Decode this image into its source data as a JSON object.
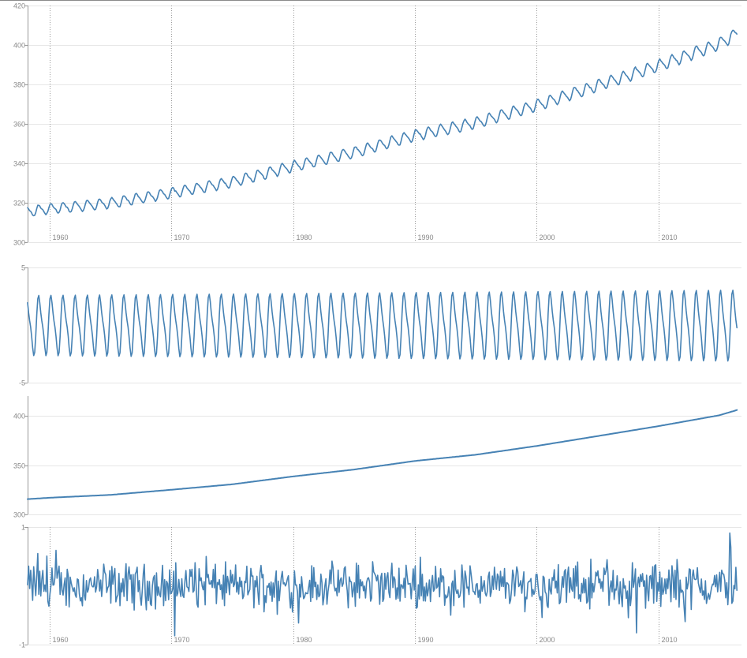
{
  "chart_data": [
    {
      "type": "line",
      "panel": "observed",
      "title": "",
      "xlabel": "",
      "ylabel": "",
      "x_range": [
        1958.2,
        2016.5
      ],
      "ylim": [
        300,
        420
      ],
      "y_ticks": [
        300,
        320,
        340,
        360,
        380,
        400,
        420
      ],
      "x_tick_labels": [
        "1960",
        "1970",
        "1980",
        "1990",
        "2000",
        "2010"
      ],
      "grid": true,
      "color": "#4682b4",
      "series": [
        {
          "values_description_free": true,
          "x": [
            1958.2,
            1960,
            1965,
            1970,
            1975,
            1980,
            1985,
            1990,
            1995,
            2000,
            2005,
            2010,
            2015,
            2016.5
          ],
          "trend": [
            315.5,
            316.9,
            319.8,
            325.0,
            330.5,
            338.5,
            345.5,
            354.2,
            360.5,
            369.4,
            379.4,
            389.5,
            400.5,
            406.0
          ],
          "seasonal_amplitude": [
            2.7,
            2.9,
            3.3
          ]
        }
      ]
    },
    {
      "type": "line",
      "panel": "seasonal",
      "ylim": [
        -5,
        5
      ],
      "y_ticks": [
        -5,
        5
      ],
      "grid": true,
      "color": "#4682b4",
      "series": [
        {
          "x_range": [
            1958.2,
            2016.5
          ],
          "amplitude_start": 2.75,
          "amplitude_end": 3.25,
          "cycles_per_year": 1
        }
      ]
    },
    {
      "type": "line",
      "panel": "trend",
      "ylim": [
        300,
        420
      ],
      "y_ticks": [
        300,
        350,
        400
      ],
      "grid": true,
      "color": "#4682b4",
      "series": [
        {
          "x": [
            1958.2,
            1960,
            1965,
            1970,
            1975,
            1980,
            1985,
            1990,
            1995,
            2000,
            2005,
            2010,
            2015,
            2016.5
          ],
          "values": [
            315.5,
            316.9,
            319.8,
            325.0,
            330.5,
            338.5,
            345.5,
            354.2,
            360.5,
            369.4,
            379.4,
            389.5,
            400.5,
            406.0
          ]
        }
      ]
    },
    {
      "type": "line",
      "panel": "residual",
      "ylim": [
        -1,
        1
      ],
      "y_ticks": [
        -1,
        1
      ],
      "x_tick_labels": [
        "1960",
        "1970",
        "1980",
        "1990",
        "2000",
        "2010"
      ],
      "grid": true,
      "color": "#4682b4",
      "series": [
        {
          "x_range": [
            1958.2,
            2016.5
          ],
          "typical_range": [
            -0.45,
            0.45
          ],
          "max": 0.9,
          "min": -0.85
        }
      ]
    }
  ]
}
